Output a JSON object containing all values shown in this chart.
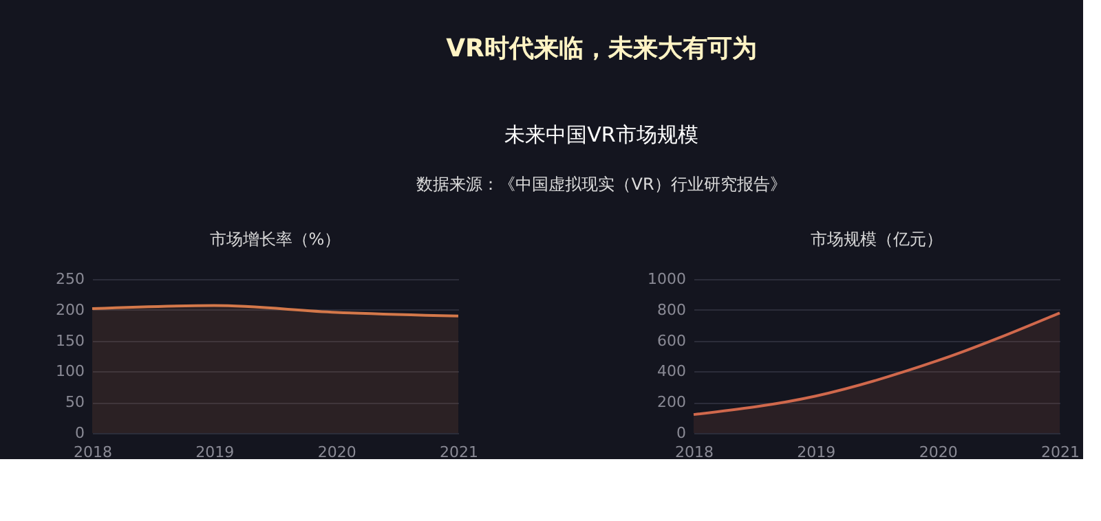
{
  "chart_data": [
    {
      "type": "other",
      "title": "VR时代来临，未来大有可为",
      "subtitle": "未来中国VR市场规模",
      "annotations": [
        "数据来源：《中国虚拟现实（VR）行业研究报告》"
      ]
    },
    {
      "type": "area",
      "title": "市场增长率（%）",
      "categories": [
        "2018",
        "2019",
        "2020",
        "2021"
      ],
      "values": [
        202,
        207,
        196,
        190
      ],
      "color": "#d4784a",
      "ylim": [
        0,
        250
      ],
      "yticks": [
        0,
        50,
        100,
        150,
        200,
        250
      ],
      "grid": "y"
    },
    {
      "type": "area",
      "title": "市场规模（亿元）",
      "categories": [
        "2018",
        "2019",
        "2020",
        "2021"
      ],
      "values": [
        120,
        240,
        470,
        780
      ],
      "color": "#d0684c",
      "ylim": [
        0,
        1000
      ],
      "yticks": [
        0,
        200,
        400,
        600,
        800,
        1000
      ],
      "grid": "y"
    }
  ]
}
